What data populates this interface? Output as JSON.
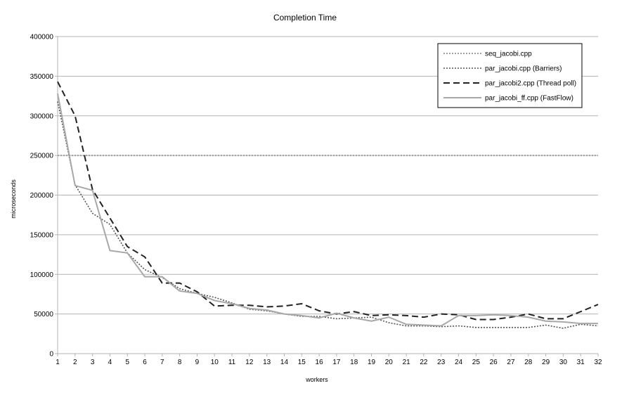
{
  "chart_data": {
    "type": "line",
    "title": "Completion Time",
    "xlabel": "workers",
    "ylabel": "microseconds",
    "ylim": [
      0,
      400000
    ],
    "yticks": [
      "0",
      "50000",
      "100000",
      "150000",
      "200000",
      "250000",
      "300000",
      "350000",
      "400000"
    ],
    "x": [
      1,
      2,
      3,
      4,
      5,
      6,
      7,
      8,
      9,
      10,
      11,
      12,
      13,
      14,
      15,
      16,
      17,
      18,
      19,
      20,
      21,
      22,
      23,
      24,
      25,
      26,
      27,
      28,
      29,
      30,
      31,
      32
    ],
    "grid": true,
    "legend_position": "top-right",
    "series": [
      {
        "name": "seq_jacobi.cpp",
        "style": "dotted",
        "color": "#a0a0a0",
        "values": [
          250000,
          250000,
          250000,
          250000,
          250000,
          250000,
          250000,
          250000,
          250000,
          250000,
          250000,
          250000,
          250000,
          250000,
          250000,
          250000,
          250000,
          250000,
          250000,
          250000,
          250000,
          250000,
          250000,
          250000,
          250000,
          250000,
          250000,
          250000,
          250000,
          250000,
          250000,
          250000
        ]
      },
      {
        "name": "par_jacobi.cpp (Barriers)",
        "style": "dotted",
        "color": "#555555",
        "values": [
          318000,
          213000,
          177000,
          163000,
          127000,
          106000,
          96000,
          82000,
          76000,
          71000,
          64000,
          56000,
          54000,
          50000,
          47000,
          47000,
          44000,
          45000,
          46000,
          39000,
          35000,
          35000,
          34000,
          35000,
          33000,
          33000,
          33000,
          33000,
          36000,
          32000,
          37000,
          35000
        ]
      },
      {
        "name": "par_jacobi2.cpp (Thread poll)",
        "style": "dashed",
        "color": "#222222",
        "values": [
          343000,
          300000,
          207000,
          171000,
          135000,
          122000,
          89000,
          89000,
          78000,
          60000,
          61000,
          61000,
          59000,
          60000,
          63000,
          54000,
          50000,
          53000,
          48000,
          49000,
          48000,
          46000,
          50000,
          49000,
          43000,
          43000,
          46000,
          50000,
          44000,
          44000,
          53000,
          62000
        ]
      },
      {
        "name": "par_jacobi_ff.cpp (FastFlow)",
        "style": "solid",
        "color": "#a8a8a8",
        "values": [
          328000,
          212000,
          206000,
          130000,
          127000,
          97000,
          97000,
          79000,
          76000,
          67000,
          63000,
          57000,
          55000,
          50000,
          48000,
          45000,
          51000,
          45000,
          41000,
          46000,
          37000,
          36000,
          35000,
          48000,
          48000,
          49000,
          48000,
          46000,
          41000,
          40000,
          38000,
          38000
        ]
      }
    ]
  }
}
